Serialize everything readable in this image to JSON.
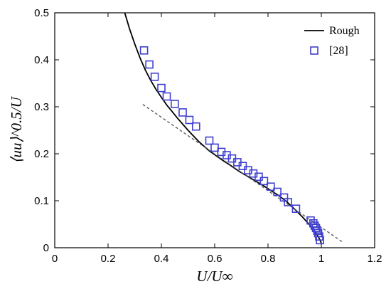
{
  "chart_data": {
    "type": "scatter",
    "xlabel": "U/U∞",
    "ylabel": "⟨uu⟩^0.5/U",
    "xlim": [
      0,
      1.2
    ],
    "ylim": [
      0,
      0.5
    ],
    "x_ticks": [
      "0",
      "0.2",
      "0.4",
      "0.6",
      "0.8",
      "1",
      "1.2"
    ],
    "y_ticks": [
      "0",
      "0.1",
      "0.2",
      "0.3",
      "0.4",
      "0.5"
    ],
    "grid": false,
    "legend_position": "top-right",
    "series": [
      {
        "name": "Rough",
        "kind": "line",
        "color": "#000000",
        "x": [
          0.26,
          0.28,
          0.3,
          0.32,
          0.34,
          0.36,
          0.38,
          0.4,
          0.42,
          0.44,
          0.46,
          0.48,
          0.5,
          0.52,
          0.54,
          0.56,
          0.58,
          0.6,
          0.63,
          0.66,
          0.69,
          0.72,
          0.75,
          0.78,
          0.81,
          0.84,
          0.87,
          0.9,
          0.93,
          0.96,
          0.98,
          0.99,
          1.0
        ],
        "y": [
          0.505,
          0.467,
          0.434,
          0.404,
          0.378,
          0.356,
          0.337,
          0.32,
          0.304,
          0.29,
          0.276,
          0.263,
          0.25,
          0.238,
          0.226,
          0.216,
          0.206,
          0.198,
          0.186,
          0.175,
          0.163,
          0.153,
          0.143,
          0.133,
          0.122,
          0.111,
          0.098,
          0.082,
          0.065,
          0.046,
          0.032,
          0.022,
          0.01
        ]
      },
      {
        "name": "",
        "kind": "dashed",
        "color": "#555555",
        "x": [
          0.33,
          1.08
        ],
        "y": [
          0.305,
          0.012
        ]
      },
      {
        "name": "[28]",
        "kind": "markers",
        "color": "#3f3fcf",
        "x": [
          0.335,
          0.355,
          0.375,
          0.4,
          0.42,
          0.45,
          0.48,
          0.505,
          0.53,
          0.58,
          0.6,
          0.625,
          0.645,
          0.665,
          0.685,
          0.705,
          0.725,
          0.745,
          0.765,
          0.785,
          0.81,
          0.835,
          0.86,
          0.875,
          0.905,
          0.96,
          0.97,
          0.975,
          0.98,
          0.985,
          0.988,
          0.992,
          0.995
        ],
        "y": [
          0.42,
          0.39,
          0.364,
          0.34,
          0.322,
          0.306,
          0.288,
          0.272,
          0.258,
          0.228,
          0.213,
          0.204,
          0.197,
          0.19,
          0.182,
          0.174,
          0.165,
          0.158,
          0.151,
          0.142,
          0.13,
          0.119,
          0.107,
          0.097,
          0.083,
          0.058,
          0.052,
          0.047,
          0.042,
          0.036,
          0.031,
          0.024,
          0.016
        ]
      }
    ]
  }
}
